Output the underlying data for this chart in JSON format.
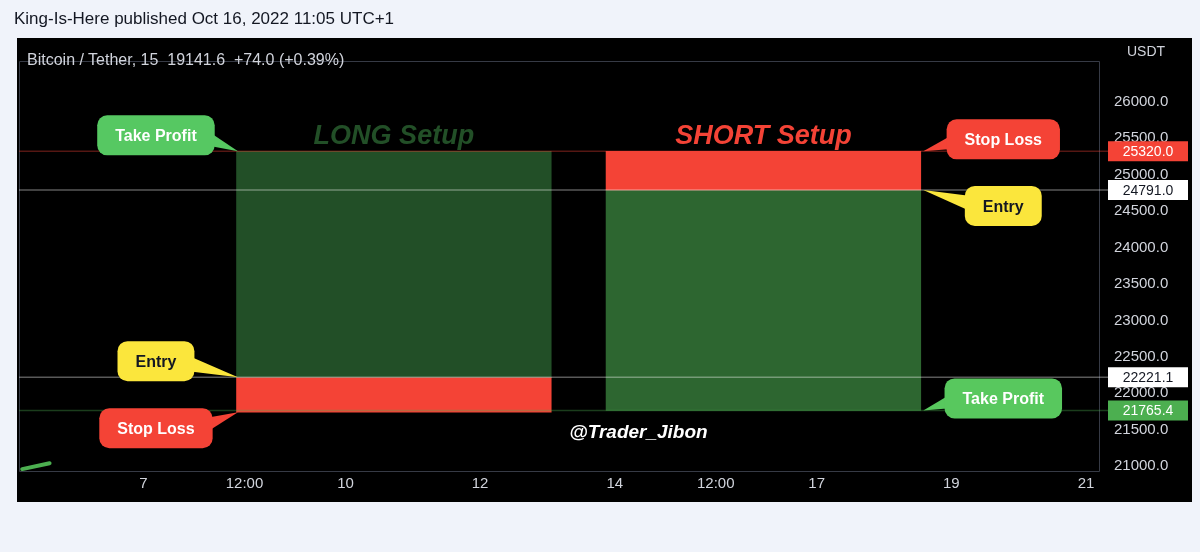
{
  "chart_data": {
    "type": "bar",
    "title": "King-Is-Here published Oct 16, 2022 11:05 UTC+1",
    "subtitle": "Bitcoin / Tether, 15  19141.6  +74.0 (+0.39%)",
    "ylabel": "USDT",
    "xlim": [
      "2022-10-05T03:36",
      "2022-10-21T05:00"
    ],
    "xticks": [
      {
        "value": "2022-10-07",
        "label": "7"
      },
      {
        "value": "2022-10-08T12:00",
        "label": "12:00"
      },
      {
        "value": "2022-10-10",
        "label": "10"
      },
      {
        "value": "2022-10-12",
        "label": "12"
      },
      {
        "value": "2022-10-14",
        "label": "14"
      },
      {
        "value": "2022-10-15T12:00",
        "label": "12:00"
      },
      {
        "value": "2022-10-17",
        "label": "17"
      },
      {
        "value": "2022-10-19",
        "label": "19"
      },
      {
        "value": "2022-10-21",
        "label": "21"
      }
    ],
    "ylim": [
      20920,
      26560
    ],
    "yticks": [
      {
        "value": 21000,
        "label": "21000.0"
      },
      {
        "value": 21500,
        "label": "21500.0"
      },
      {
        "value": 22000,
        "label": "22000.0"
      },
      {
        "value": 22500,
        "label": "22500.0"
      },
      {
        "value": 23000,
        "label": "23000.0"
      },
      {
        "value": 23500,
        "label": "23500.0"
      },
      {
        "value": 24000,
        "label": "24000.0"
      },
      {
        "value": 24500,
        "label": "24500.0"
      },
      {
        "value": 25000,
        "label": "25000.0"
      },
      {
        "value": 25500,
        "label": "25500.0"
      },
      {
        "value": 26000,
        "label": "26000.0"
      }
    ],
    "series": [
      {
        "name": "LONG Setup",
        "x": [
          "2022-10-10T17:15",
          "2022-10-10T17:15"
        ],
        "values": [
          480,
          3100
        ],
        "base": [
          21740,
          22221.1
        ],
        "colors": [
          "#f44336",
          "#224f27"
        ]
      },
      {
        "name": "SHORT Setup",
        "x": [
          "2022-10-16T05:00",
          "2022-10-16T05:00"
        ],
        "values": [
          3030,
          530
        ],
        "base": [
          21765.4,
          24791
        ],
        "colors": [
          "#2d6630",
          "#f44336"
        ]
      },
      {
        "type": "line",
        "x": [
          "2022-10-05T04:45",
          "2022-10-05T14:30"
        ],
        "values": [
          20960,
          21040
        ],
        "color": "#4caf50"
      }
    ],
    "annotations": [
      {
        "text": "Take Profit",
        "x": "2022-10-08T09:40",
        "y": 25320
      },
      {
        "text": "Entry",
        "x": "2022-10-08T09:40",
        "y": 22221.1
      },
      {
        "text": "Stop Loss",
        "x": "2022-10-08T09:40",
        "y": 21740
      },
      {
        "text": "Stop Loss",
        "x": "2022-10-18T14:00",
        "y": 25320
      },
      {
        "text": "Entry",
        "x": "2022-10-18T14:00",
        "y": 24791
      },
      {
        "text": "Take Profit",
        "x": "2022-10-18T14:00",
        "y": 21765.4
      },
      "@Trader_Jibon"
    ],
    "ref_lines": [
      {
        "axis": "y",
        "value": 25320,
        "label": "25320.0",
        "color": "#f44336"
      },
      {
        "axis": "y",
        "value": 24791,
        "label": "24791.0",
        "color": "#ffffff"
      },
      {
        "axis": "y",
        "value": 22221.1,
        "label": "22221.1",
        "color": "#ffffff"
      },
      {
        "axis": "y",
        "value": 21765.4,
        "label": "21765.4",
        "color": "#4caf50"
      }
    ]
  }
}
